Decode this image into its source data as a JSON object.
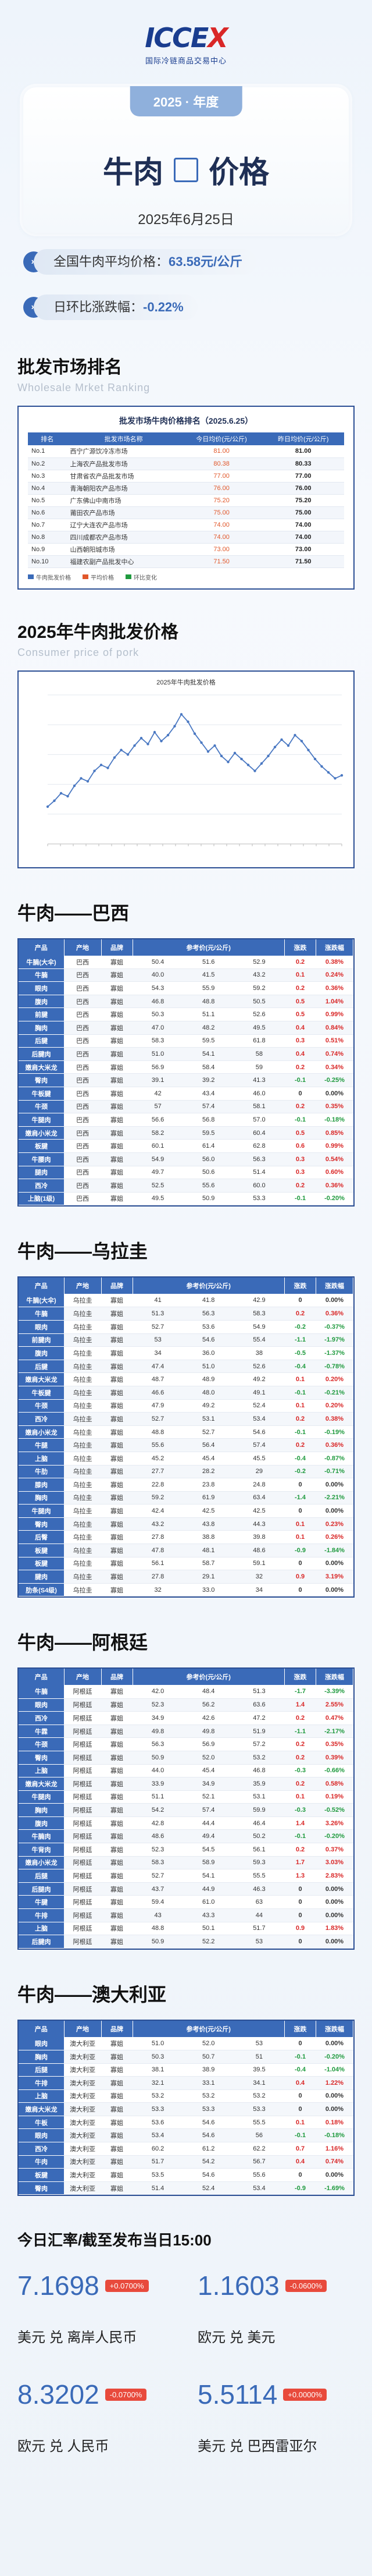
{
  "logo": {
    "mark_a": "ICCE",
    "mark_b": "X",
    "subtitle": "国际冷链商品交易中心"
  },
  "title": {
    "year": "2025 · 年度",
    "left": "牛肉",
    "right": "价格",
    "date": "2025年6月25日"
  },
  "summary": {
    "avg_label": "全国牛肉平均价格：",
    "avg_value": "63.58元/公斤",
    "change_label": "日环比涨跌幅：",
    "change_value": "-0.22%"
  },
  "wholesale": {
    "title": "批发市场排名",
    "subtitle": "Wholesale Mrket Ranking",
    "table_title": "批发市场牛肉价格排名（2025.6.25）",
    "headers": [
      "排名",
      "批发市场名称",
      "今日均价(元/公斤)",
      "昨日均价(元/公斤)"
    ],
    "rows": [
      [
        "No.1",
        "西宁广源饮冷冻市场",
        "81.00",
        "81.00"
      ],
      [
        "No.2",
        "上海农产品批发市场",
        "80.38",
        "80.33"
      ],
      [
        "No.3",
        "甘肃省农产品批发市场",
        "77.00",
        "77.00"
      ],
      [
        "No.4",
        "青海朝阳农产品市场",
        "76.00",
        "76.00"
      ],
      [
        "No.5",
        "广东佛山中南市场",
        "75.20",
        "75.20"
      ],
      [
        "No.6",
        "莆田农产品市场",
        "75.00",
        "75.00"
      ],
      [
        "No.7",
        "辽宁大连农产品市场",
        "74.00",
        "74.00"
      ],
      [
        "No.8",
        "四川成都农产品市场",
        "74.00",
        "74.00"
      ],
      [
        "No.9",
        "山西朝阳城市场",
        "73.00",
        "73.00"
      ],
      [
        "No.10",
        "福建农副产品批发中心",
        "71.50",
        "71.50"
      ]
    ],
    "legend": [
      "牛肉批发价格",
      "平均价格",
      "环比变化"
    ]
  },
  "trend": {
    "title": "2025年牛肉批发价格",
    "subtitle": "Consumer price of pork",
    "chart_title": "2025年牛肉批发价格"
  },
  "chart_data": {
    "type": "line",
    "title": "2025年牛肉批发价格",
    "series": [
      {
        "name": "",
        "values": [
          61.5,
          61.9,
          62.4,
          62.2,
          62.9,
          63.4,
          63.2,
          63.9,
          64.3,
          64.1,
          64.8,
          65.3,
          65.0,
          65.6,
          66.1,
          65.7,
          66.5,
          65.9,
          66.3,
          66.9,
          67.7,
          67.2,
          66.4,
          65.8,
          65.2,
          65.6,
          64.9,
          64.5,
          65.1,
          64.7,
          64.3,
          63.9,
          64.4,
          64.9,
          65.5,
          66.0,
          65.6,
          66.3,
          65.9,
          65.3,
          64.7,
          64.2,
          63.8,
          63.4,
          63.6
        ]
      }
    ],
    "ylim": [
      59,
      69
    ],
    "grid": true
  },
  "countries": [
    {
      "title": "牛肉——巴西",
      "headers": [
        "产品",
        "产地",
        "品牌",
        "参考价(元/公斤)",
        "",
        "",
        "涨跌",
        "涨跌幅"
      ],
      "rows": [
        [
          "牛腩(大伞)",
          "巴西",
          "寡姐",
          "50.4",
          "51.6",
          "52.9",
          "0.2",
          "0.38%",
          "up"
        ],
        [
          "牛腩",
          "巴西",
          "寡姐",
          "40.0",
          "41.5",
          "43.2",
          "0.1",
          "0.24%",
          "up"
        ],
        [
          "眼肉",
          "巴西",
          "寡姐",
          "54.3",
          "55.9",
          "59.2",
          "0.2",
          "0.36%",
          "up"
        ],
        [
          "腹肉",
          "巴西",
          "寡姐",
          "46.8",
          "48.8",
          "50.5",
          "0.5",
          "1.04%",
          "up"
        ],
        [
          "前腱",
          "巴西",
          "寡姐",
          "50.3",
          "51.1",
          "52.6",
          "0.5",
          "0.99%",
          "up"
        ],
        [
          "胸肉",
          "巴西",
          "寡姐",
          "47.0",
          "48.2",
          "49.5",
          "0.4",
          "0.84%",
          "up"
        ],
        [
          "后腱",
          "巴西",
          "寡姐",
          "58.3",
          "59.5",
          "61.8",
          "0.3",
          "0.51%",
          "up"
        ],
        [
          "后腱肉",
          "巴西",
          "寡姐",
          "51.0",
          "54.1",
          "58",
          "0.4",
          "0.74%",
          "up"
        ],
        [
          "嫩肩大米龙",
          "巴西",
          "寡姐",
          "56.9",
          "58.4",
          "59",
          "0.2",
          "0.34%",
          "up"
        ],
        [
          "臀肉",
          "巴西",
          "寡姐",
          "39.1",
          "39.2",
          "41.3",
          "-0.1",
          "-0.25%",
          "down"
        ],
        [
          "牛板腱",
          "巴西",
          "寡姐",
          "42",
          "43.4",
          "46.0",
          "0",
          "0.00%",
          "flat"
        ],
        [
          "牛颈",
          "巴西",
          "寡姐",
          "57",
          "57.4",
          "58.1",
          "0.2",
          "0.35%",
          "up"
        ],
        [
          "牛腿肉",
          "巴西",
          "寡姐",
          "56.6",
          "56.8",
          "57.0",
          "-0.1",
          "-0.18%",
          "down"
        ],
        [
          "嫩肩小米龙",
          "巴西",
          "寡姐",
          "58.2",
          "59.5",
          "60.4",
          "0.5",
          "0.85%",
          "up"
        ],
        [
          "板腱",
          "巴西",
          "寡姐",
          "60.1",
          "61.4",
          "62.8",
          "0.6",
          "0.99%",
          "up"
        ],
        [
          "牛腰肉",
          "巴西",
          "寡姐",
          "54.9",
          "56.0",
          "56.3",
          "0.3",
          "0.54%",
          "up"
        ],
        [
          "腿肉",
          "巴西",
          "寡姐",
          "49.7",
          "50.6",
          "51.4",
          "0.3",
          "0.60%",
          "up"
        ],
        [
          "西冷",
          "巴西",
          "寡姐",
          "52.5",
          "55.6",
          "60.0",
          "0.2",
          "0.36%",
          "up"
        ],
        [
          "上脑(1级)",
          "巴西",
          "寡姐",
          "49.5",
          "50.9",
          "53.3",
          "-0.1",
          "-0.20%",
          "down"
        ]
      ]
    },
    {
      "title": "牛肉——乌拉圭",
      "headers": [
        "产品",
        "产地",
        "品牌",
        "参考价(元/公斤)",
        "",
        "",
        "涨跌",
        "涨跌幅"
      ],
      "rows": [
        [
          "牛腩(大伞)",
          "乌拉圭",
          "寡姐",
          "41",
          "41.8",
          "42.9",
          "0",
          "0.00%",
          "flat"
        ],
        [
          "牛腩",
          "乌拉圭",
          "寡姐",
          "51.3",
          "56.3",
          "58.3",
          "0.2",
          "0.36%",
          "up"
        ],
        [
          "眼肉",
          "乌拉圭",
          "寡姐",
          "52.7",
          "53.6",
          "54.9",
          "-0.2",
          "-0.37%",
          "down"
        ],
        [
          "前腱肉",
          "乌拉圭",
          "寡姐",
          "53",
          "54.6",
          "55.4",
          "-1.1",
          "-1.97%",
          "down"
        ],
        [
          "腹肉",
          "乌拉圭",
          "寡姐",
          "34",
          "36.0",
          "38",
          "-0.5",
          "-1.37%",
          "down"
        ],
        [
          "后腱",
          "乌拉圭",
          "寡姐",
          "47.4",
          "51.0",
          "52.6",
          "-0.4",
          "-0.78%",
          "down"
        ],
        [
          "嫩肩大米龙",
          "乌拉圭",
          "寡姐",
          "48.7",
          "48.9",
          "49.2",
          "0.1",
          "0.20%",
          "up"
        ],
        [
          "牛板腱",
          "乌拉圭",
          "寡姐",
          "46.6",
          "48.0",
          "49.1",
          "-0.1",
          "-0.21%",
          "down"
        ],
        [
          "牛颈",
          "乌拉圭",
          "寡姐",
          "47.9",
          "49.2",
          "52.4",
          "0.1",
          "0.20%",
          "up"
        ],
        [
          "西冷",
          "乌拉圭",
          "寡姐",
          "52.7",
          "53.1",
          "53.4",
          "0.2",
          "0.38%",
          "up"
        ],
        [
          "嫩肩小米龙",
          "乌拉圭",
          "寡姐",
          "48.8",
          "52.7",
          "54.6",
          "-0.1",
          "-0.19%",
          "down"
        ],
        [
          "牛腿",
          "乌拉圭",
          "寡姐",
          "55.6",
          "56.4",
          "57.4",
          "0.2",
          "0.36%",
          "up"
        ],
        [
          "上脑",
          "乌拉圭",
          "寡姐",
          "45.2",
          "45.4",
          "45.5",
          "-0.4",
          "-0.87%",
          "down"
        ],
        [
          "牛肋",
          "乌拉圭",
          "寡姐",
          "27.7",
          "28.2",
          "29",
          "-0.2",
          "-0.71%",
          "down"
        ],
        [
          "膝肉",
          "乌拉圭",
          "寡姐",
          "22.8",
          "23.8",
          "24.8",
          "0",
          "0.00%",
          "flat"
        ],
        [
          "胸肉",
          "乌拉圭",
          "寡姐",
          "59.2",
          "61.9",
          "63.4",
          "-1.4",
          "-2.21%",
          "down"
        ],
        [
          "牛腿肉",
          "乌拉圭",
          "寡姐",
          "42.4",
          "42.5",
          "42.5",
          "0",
          "0.00%",
          "flat"
        ],
        [
          "臀肉",
          "乌拉圭",
          "寡姐",
          "43.2",
          "43.8",
          "44.3",
          "0.1",
          "0.23%",
          "up"
        ],
        [
          "后臀",
          "乌拉圭",
          "寡姐",
          "27.8",
          "38.8",
          "39.8",
          "0.1",
          "0.26%",
          "up"
        ],
        [
          "板腱",
          "乌拉圭",
          "寡姐",
          "47.8",
          "48.1",
          "48.6",
          "-0.9",
          "-1.84%",
          "down"
        ],
        [
          "板腱",
          "乌拉圭",
          "寡姐",
          "56.1",
          "58.7",
          "59.1",
          "0",
          "0.00%",
          "flat"
        ],
        [
          "腱肉",
          "乌拉圭",
          "寡姐",
          "27.8",
          "29.1",
          "32",
          "0.9",
          "3.19%",
          "up"
        ],
        [
          "肋条(S4级)",
          "乌拉圭",
          "寡姐",
          "32",
          "33.0",
          "34",
          "0",
          "0.00%",
          "flat"
        ]
      ]
    },
    {
      "title": "牛肉——阿根廷",
      "headers": [
        "产品",
        "产地",
        "品牌",
        "参考价(元/公斤)",
        "",
        "",
        "涨跌",
        "涨跌幅"
      ],
      "rows": [
        [
          "牛腩",
          "阿根廷",
          "寡姐",
          "42.0",
          "48.4",
          "51.3",
          "-1.7",
          "-3.39%",
          "down"
        ],
        [
          "眼肉",
          "阿根廷",
          "寡姐",
          "52.3",
          "56.2",
          "63.6",
          "1.4",
          "2.55%",
          "up"
        ],
        [
          "西冷",
          "阿根廷",
          "寡姐",
          "34.9",
          "42.6",
          "47.2",
          "0.2",
          "0.47%",
          "up"
        ],
        [
          "牛霖",
          "阿根廷",
          "寡姐",
          "49.8",
          "49.8",
          "51.9",
          "-1.1",
          "-2.17%",
          "down"
        ],
        [
          "牛颈",
          "阿根廷",
          "寡姐",
          "56.3",
          "56.9",
          "57.2",
          "0.2",
          "0.35%",
          "up"
        ],
        [
          "臀肉",
          "阿根廷",
          "寡姐",
          "50.9",
          "52.0",
          "53.2",
          "0.2",
          "0.39%",
          "up"
        ],
        [
          "上脑",
          "阿根廷",
          "寡姐",
          "44.0",
          "45.4",
          "46.8",
          "-0.3",
          "-0.66%",
          "down"
        ],
        [
          "嫩肩大米龙",
          "阿根廷",
          "寡姐",
          "33.9",
          "34.9",
          "35.9",
          "0.2",
          "0.58%",
          "up"
        ],
        [
          "牛腿肉",
          "阿根廷",
          "寡姐",
          "51.1",
          "52.1",
          "53.1",
          "0.1",
          "0.19%",
          "up"
        ],
        [
          "胸肉",
          "阿根廷",
          "寡姐",
          "54.2",
          "57.4",
          "59.9",
          "-0.3",
          "-0.52%",
          "down"
        ],
        [
          "腹肉",
          "阿根廷",
          "寡姐",
          "42.8",
          "44.4",
          "46.4",
          "1.4",
          "3.26%",
          "up"
        ],
        [
          "牛腩肉",
          "阿根廷",
          "寡姐",
          "48.6",
          "49.4",
          "50.2",
          "-0.1",
          "-0.20%",
          "down"
        ],
        [
          "牛背肉",
          "阿根廷",
          "寡姐",
          "52.3",
          "54.5",
          "56.1",
          "0.2",
          "0.37%",
          "up"
        ],
        [
          "嫩肩小米龙",
          "阿根廷",
          "寡姐",
          "58.3",
          "58.9",
          "59.3",
          "1.7",
          "3.03%",
          "up"
        ],
        [
          "后腿",
          "阿根廷",
          "寡姐",
          "52.7",
          "54.1",
          "55.5",
          "1.3",
          "2.83%",
          "up"
        ],
        [
          "后腿肉",
          "阿根廷",
          "寡姐",
          "43.7",
          "44.9",
          "46.3",
          "0",
          "0.00%",
          "flat"
        ],
        [
          "牛腱",
          "阿根廷",
          "寡姐",
          "59.4",
          "61.0",
          "63",
          "0",
          "0.00%",
          "flat"
        ],
        [
          "牛排",
          "阿根廷",
          "寡姐",
          "43",
          "43.3",
          "44",
          "0",
          "0.00%",
          "flat"
        ],
        [
          "上脑",
          "阿根廷",
          "寡姐",
          "48.8",
          "50.1",
          "51.7",
          "0.9",
          "1.83%",
          "up"
        ],
        [
          "后腱肉",
          "阿根廷",
          "寡姐",
          "50.9",
          "52.2",
          "53",
          "0",
          "0.00%",
          "flat"
        ]
      ]
    },
    {
      "title": "牛肉——澳大利亚",
      "headers": [
        "产品",
        "产地",
        "品牌",
        "参考价(元/公斤)",
        "",
        "",
        "涨跌",
        "涨跌幅"
      ],
      "rows": [
        [
          "眼肉",
          "澳大利亚",
          "寡姐",
          "51.0",
          "52.0",
          "53",
          "0",
          "0.00%",
          "flat"
        ],
        [
          "胸肉",
          "澳大利亚",
          "寡姐",
          "50.3",
          "50.7",
          "51",
          "-0.1",
          "-0.20%",
          "down"
        ],
        [
          "后腿",
          "澳大利亚",
          "寡姐",
          "38.1",
          "38.9",
          "39.5",
          "-0.4",
          "-1.04%",
          "down"
        ],
        [
          "牛排",
          "澳大利亚",
          "寡姐",
          "32.1",
          "33.1",
          "34.1",
          "0.4",
          "1.22%",
          "up"
        ],
        [
          "上脑",
          "澳大利亚",
          "寡姐",
          "53.2",
          "53.2",
          "53.2",
          "0",
          "0.00%",
          "flat"
        ],
        [
          "嫩肩大米龙",
          "澳大利亚",
          "寡姐",
          "53.3",
          "53.3",
          "53.3",
          "0",
          "0.00%",
          "flat"
        ],
        [
          "牛板",
          "澳大利亚",
          "寡姐",
          "53.6",
          "54.6",
          "55.5",
          "0.1",
          "0.18%",
          "up"
        ],
        [
          "眼肉",
          "澳大利亚",
          "寡姐",
          "53.4",
          "54.6",
          "56",
          "-0.1",
          "-0.18%",
          "down"
        ],
        [
          "西冷",
          "澳大利亚",
          "寡姐",
          "60.2",
          "61.2",
          "62.2",
          "0.7",
          "1.16%",
          "up"
        ],
        [
          "牛肉",
          "澳大利亚",
          "寡姐",
          "51.7",
          "54.2",
          "56.7",
          "0.4",
          "0.74%",
          "up"
        ],
        [
          "板腱",
          "澳大利亚",
          "寡姐",
          "53.5",
          "54.6",
          "55.6",
          "0",
          "0.00%",
          "flat"
        ],
        [
          "臀肉",
          "澳大利亚",
          "寡姐",
          "51.4",
          "52.4",
          "53.4",
          "-0.9",
          "-1.69%",
          "down"
        ]
      ]
    }
  ],
  "fx": {
    "title": "今日汇率/截至发布当日15:00",
    "items": [
      {
        "value": "7.1698",
        "change": "+0.0700%",
        "label": "美元 兑 离岸人民币"
      },
      {
        "value": "1.1603",
        "change": "-0.0600%",
        "label": "欧元 兑 美元"
      },
      {
        "value": "8.3202",
        "change": "-0.0700%",
        "label": "欧元 兑 人民币"
      },
      {
        "value": "5.5114",
        "change": "+0.0000%",
        "label": "美元 兑 巴西雷亚尔"
      }
    ]
  },
  "colors": {
    "primary": "#3a6ab8",
    "navy": "#2c4f94",
    "up": "#d92727",
    "down": "#1f9a3e"
  }
}
